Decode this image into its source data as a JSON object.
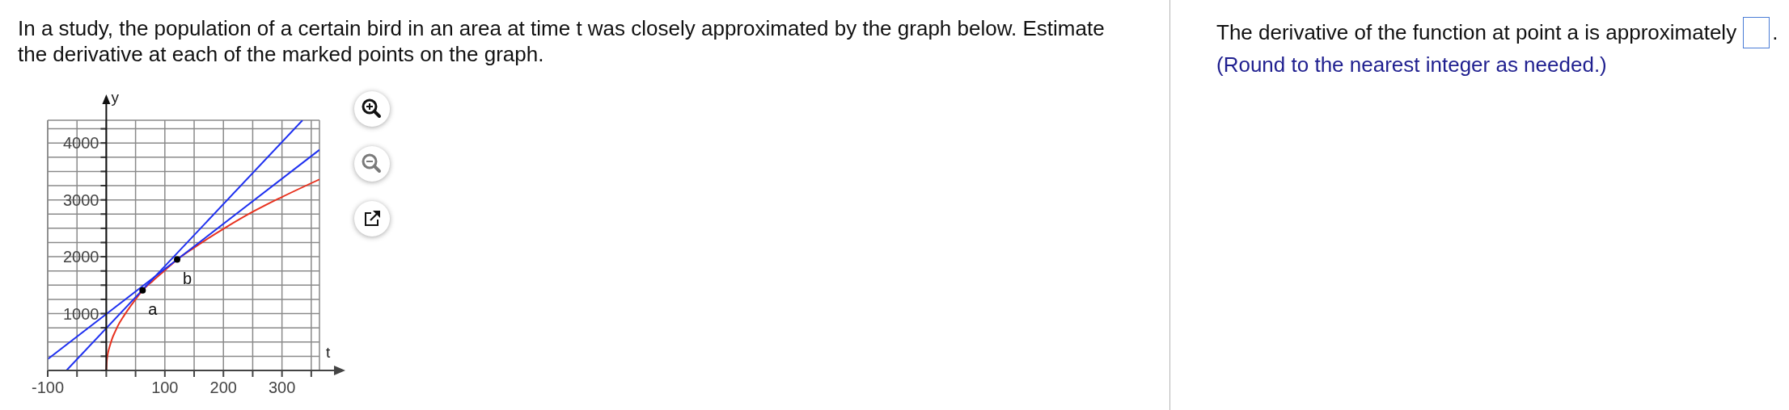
{
  "chart_data": {
    "type": "line",
    "title": "In a study, the population of a certain bird in an area at time t was closely approximated by the graph below. Estimate the derivative at each of the marked points on the graph.",
    "xlabel": "t",
    "ylabel": "y",
    "annotations": [
      {
        "text": "a",
        "x": 62,
        "y": 1410
      },
      {
        "text": "b",
        "x": 121,
        "y": 1950
      },
      "The derivative of the function at point a is approximately",
      ".",
      "(Round to the nearest integer as needed.)"
    ],
    "series": [
      {
        "color": "#e8321f",
        "x": [
          0,
          1,
          3,
          6,
          10,
          15,
          20,
          30,
          40,
          50,
          62,
          80,
          100,
          121,
          150,
          175,
          200,
          250,
          300,
          364
        ],
        "values": [
          0,
          180,
          310,
          430,
          560,
          680,
          790,
          960,
          1110,
          1250,
          1410,
          1580,
          1760,
          1950,
          2160,
          2330,
          2490,
          2790,
          3050,
          3360
        ]
      },
      {
        "color": "#1e30f0",
        "x": [
          -68,
          335
        ],
        "values": [
          0,
          4400
        ]
      },
      {
        "color": "#1e30f0",
        "x": [
          -100,
          364
        ],
        "values": [
          200,
          3880
        ]
      },
      {
        "type": "scatter",
        "color": "#000000",
        "marker": "circle",
        "x": [
          62,
          121
        ],
        "values": [
          1410,
          1950
        ]
      }
    ],
    "marker": "none",
    "xlim": [
      -100,
      364
    ],
    "xticks": [
      -100,
      {
        "value": -50,
        "label": null
      },
      {
        "value": 0,
        "label": null
      },
      {
        "value": 50,
        "label": null
      },
      100,
      {
        "value": 150,
        "label": null
      },
      200,
      {
        "value": 250,
        "label": null
      },
      300,
      {
        "value": 350,
        "label": null
      }
    ],
    "ylim": [
      0,
      4400
    ],
    "yticks": [
      {
        "value": 0,
        "label": null
      },
      {
        "value": 250,
        "label": null
      },
      {
        "value": 500,
        "label": null
      },
      {
        "value": 750,
        "label": null
      },
      1000,
      {
        "value": 1250,
        "label": null
      },
      {
        "value": 1500,
        "label": null
      },
      {
        "value": 1750,
        "label": null
      },
      2000,
      {
        "value": 2250,
        "label": null
      },
      {
        "value": 2500,
        "label": null
      },
      {
        "value": 2750,
        "label": null
      },
      3000,
      {
        "value": 3250,
        "label": null
      },
      {
        "value": 3500,
        "label": null
      },
      {
        "value": 3750,
        "label": null
      },
      4000,
      {
        "value": 4250,
        "label": null
      }
    ],
    "grid": true
  }
}
